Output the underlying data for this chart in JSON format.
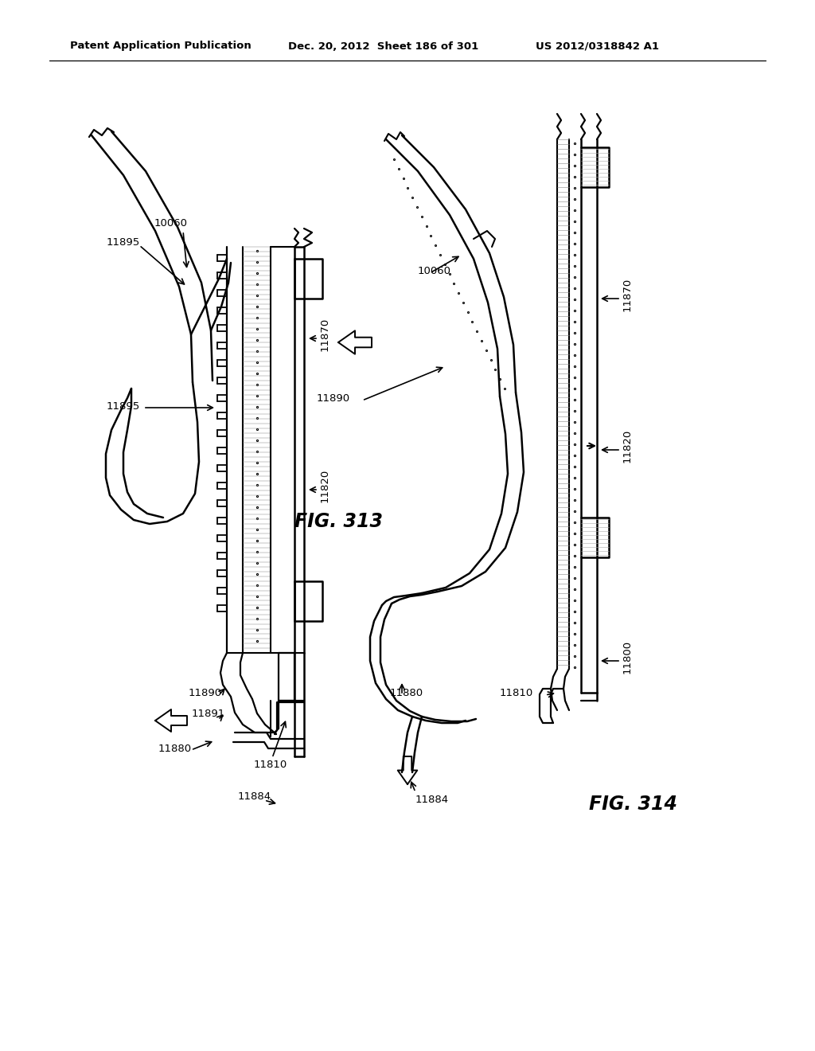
{
  "bg_color": "#ffffff",
  "header_left": "Patent Application Publication",
  "header_mid": "Dec. 20, 2012  Sheet 186 of 301",
  "header_right": "US 2012/0318842 A1",
  "fig313_label": "FIG. 313",
  "fig314_label": "FIG. 314"
}
